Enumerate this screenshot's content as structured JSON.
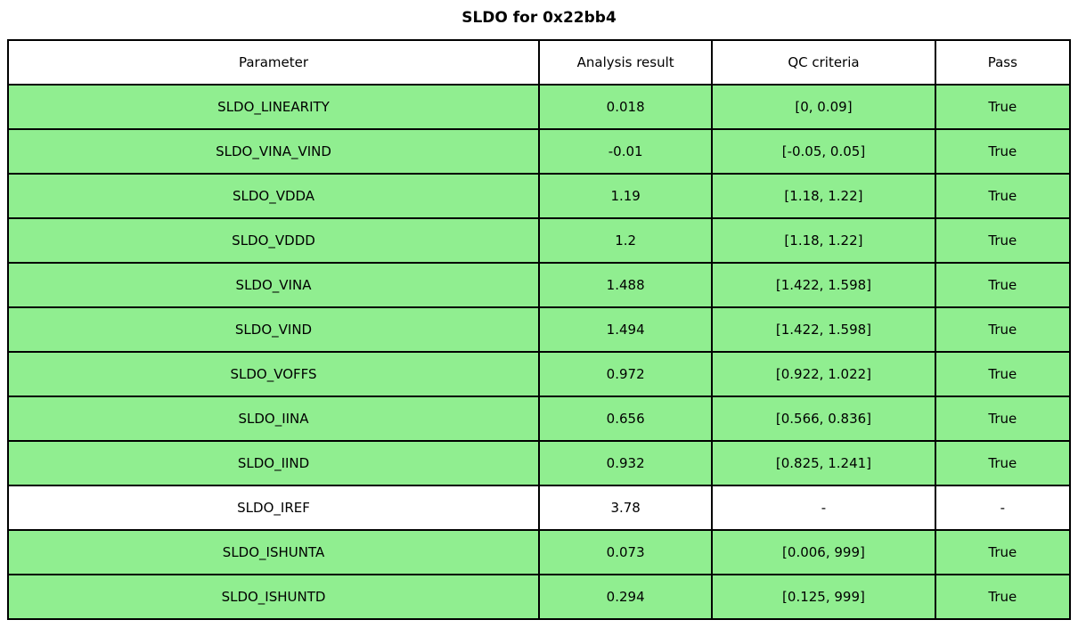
{
  "chart_data": {
    "type": "table",
    "title": "SLDO for 0x22bb4",
    "headers": [
      "Parameter",
      "Analysis result",
      "QC criteria",
      "Pass"
    ],
    "rows": [
      {
        "parameter": "SLDO_LINEARITY",
        "result": "0.018",
        "criteria": "[0, 0.09]",
        "pass": "True",
        "highlight": true
      },
      {
        "parameter": "SLDO_VINA_VIND",
        "result": "-0.01",
        "criteria": "[-0.05, 0.05]",
        "pass": "True",
        "highlight": true
      },
      {
        "parameter": "SLDO_VDDA",
        "result": "1.19",
        "criteria": "[1.18, 1.22]",
        "pass": "True",
        "highlight": true
      },
      {
        "parameter": "SLDO_VDDD",
        "result": "1.2",
        "criteria": "[1.18, 1.22]",
        "pass": "True",
        "highlight": true
      },
      {
        "parameter": "SLDO_VINA",
        "result": "1.488",
        "criteria": "[1.422, 1.598]",
        "pass": "True",
        "highlight": true
      },
      {
        "parameter": "SLDO_VIND",
        "result": "1.494",
        "criteria": "[1.422, 1.598]",
        "pass": "True",
        "highlight": true
      },
      {
        "parameter": "SLDO_VOFFS",
        "result": "0.972",
        "criteria": "[0.922, 1.022]",
        "pass": "True",
        "highlight": true
      },
      {
        "parameter": "SLDO_IINA",
        "result": "0.656",
        "criteria": "[0.566, 0.836]",
        "pass": "True",
        "highlight": true
      },
      {
        "parameter": "SLDO_IIND",
        "result": "0.932",
        "criteria": "[0.825, 1.241]",
        "pass": "True",
        "highlight": true
      },
      {
        "parameter": "SLDO_IREF",
        "result": "3.78",
        "criteria": "-",
        "pass": "-",
        "highlight": false
      },
      {
        "parameter": "SLDO_ISHUNTA",
        "result": "0.073",
        "criteria": "[0.006, 999]",
        "pass": "True",
        "highlight": true
      },
      {
        "parameter": "SLDO_ISHUNTD",
        "result": "0.294",
        "criteria": "[0.125, 999]",
        "pass": "True",
        "highlight": true
      }
    ],
    "colors": {
      "pass_row_bg": "#90EE90",
      "neutral_row_bg": "#FFFFFF",
      "border": "#000000"
    },
    "layout": {
      "legend": "none",
      "grid": "table-borders",
      "column_width_pct": [
        50.0,
        16.3,
        21.0,
        12.7
      ]
    }
  }
}
